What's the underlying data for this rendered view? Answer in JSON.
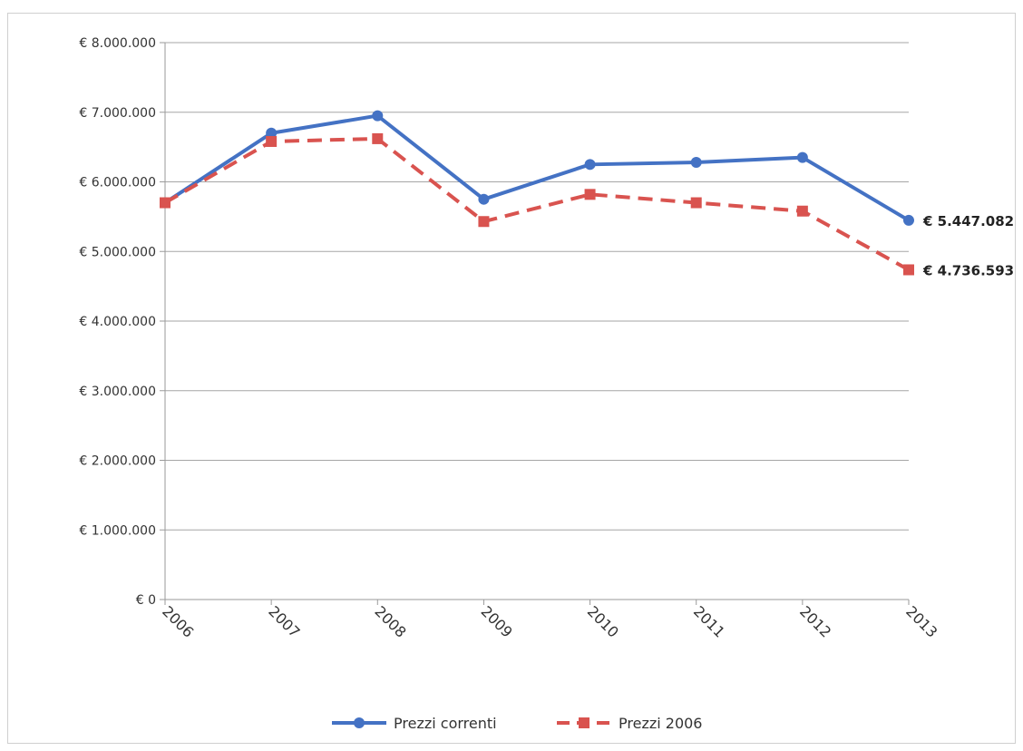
{
  "chart_data": {
    "type": "line",
    "categories": [
      "2006",
      "2007",
      "2008",
      "2009",
      "2010",
      "2011",
      "2012",
      "2013"
    ],
    "series": [
      {
        "name": "Prezzi correnti",
        "color": "#4472c4",
        "marker": "circle",
        "line_style": "solid",
        "values": [
          5700000,
          6700000,
          6950000,
          5750000,
          6250000,
          6280000,
          6350000,
          5447082
        ],
        "end_label": "€ 5.447.082"
      },
      {
        "name": "Prezzi 2006",
        "color": "#d9534f",
        "marker": "square",
        "line_style": "dashed",
        "values": [
          5700000,
          6580000,
          6620000,
          5430000,
          5820000,
          5700000,
          5580000,
          4736593
        ],
        "end_label": "€ 4.736.593"
      }
    ],
    "ylim": [
      0,
      8000000
    ],
    "y_ticks": [
      0,
      1000000,
      2000000,
      3000000,
      4000000,
      5000000,
      6000000,
      7000000,
      8000000
    ],
    "y_tick_labels": [
      "€ 0",
      "€ 1.000.000",
      "€ 2.000.000",
      "€ 3.000.000",
      "€ 4.000.000",
      "€ 5.000.000",
      "€ 6.000.000",
      "€ 7.000.000",
      "€ 8.000.000"
    ],
    "title": "",
    "xlabel": "",
    "ylabel": "",
    "grid": true,
    "legend_position": "bottom",
    "x_tick_rotation": "diagonal"
  }
}
